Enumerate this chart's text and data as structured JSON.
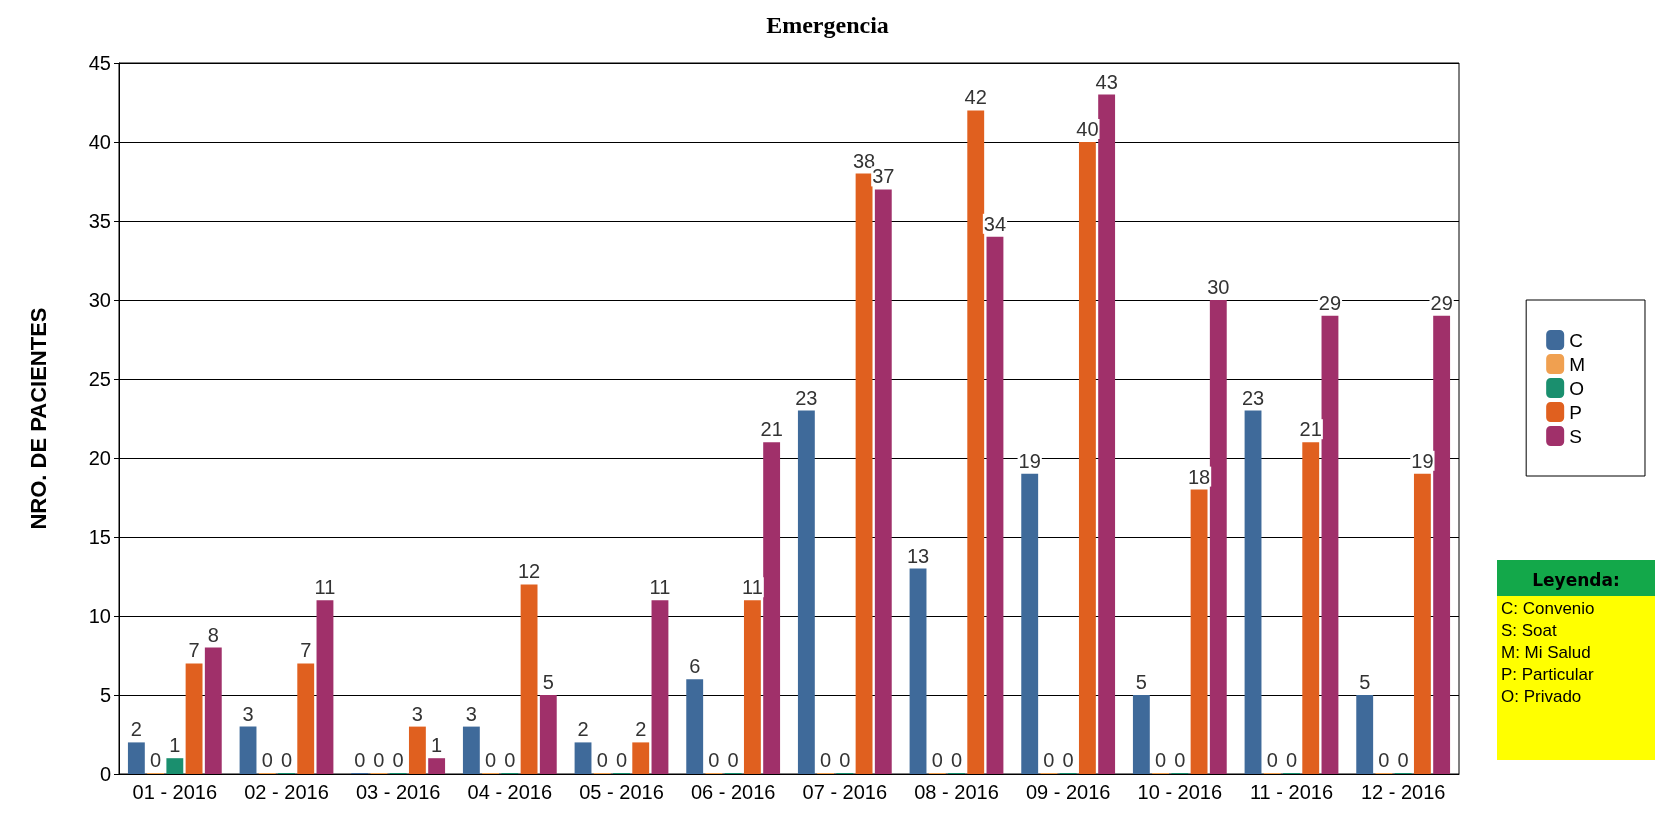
{
  "chart_data": {
    "type": "bar",
    "title": "Emergencia",
    "ylabel": "NRO. DE PACIENTES",
    "categories": [
      "01 - 2016",
      "02 - 2016",
      "03 - 2016",
      "04 - 2016",
      "05 - 2016",
      "06 - 2016",
      "07 - 2016",
      "08 - 2016",
      "09 - 2016",
      "10 - 2016",
      "11 - 2016",
      "12 - 2016"
    ],
    "series": [
      {
        "name": "C",
        "color": "#3f6a9a",
        "values": [
          2,
          3,
          0,
          3,
          2,
          6,
          23,
          13,
          19,
          5,
          23,
          5
        ]
      },
      {
        "name": "M",
        "color": "#f0a050",
        "values": [
          0,
          0,
          0,
          0,
          0,
          0,
          0,
          0,
          0,
          0,
          0,
          0
        ]
      },
      {
        "name": "O",
        "color": "#1a8f6e",
        "values": [
          1,
          0,
          0,
          0,
          0,
          0,
          0,
          0,
          0,
          0,
          0,
          0
        ]
      },
      {
        "name": "P",
        "color": "#e0601f",
        "values": [
          7,
          7,
          3,
          12,
          2,
          11,
          38,
          42,
          40,
          18,
          21,
          19
        ]
      },
      {
        "name": "S",
        "color": "#a0306a",
        "values": [
          8,
          11,
          1,
          5,
          11,
          21,
          37,
          34,
          43,
          30,
          29,
          29
        ]
      }
    ],
    "ylim": [
      0,
      45
    ],
    "yticks": [
      0,
      5,
      10,
      15,
      20,
      25,
      30,
      35,
      40,
      45
    ],
    "grid": "y",
    "legend": "right",
    "data_labels": true,
    "annotations": [
      "Leyenda:",
      "C: Convenio",
      "S: Soat",
      "M: Mi Salud",
      "P: Particular",
      "O: Privado"
    ]
  }
}
